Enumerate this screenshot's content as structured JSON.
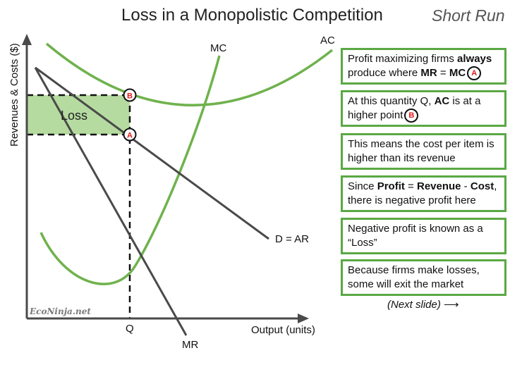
{
  "title": "Loss in a Monopolistic Competition",
  "subtitle": "Short Run",
  "diagram": {
    "ylabel": "Revenues & Costs ($)",
    "xlabel": "Output (units)",
    "curves": {
      "ac": "AC",
      "mc": "MC",
      "demand": "D = AR",
      "mr": "MR"
    },
    "area_label": "Loss",
    "quantity_label": "Q",
    "point_a": "A",
    "point_b": "B",
    "watermark": "EcoNinja.net",
    "colors": {
      "curve": "#6fb24d",
      "line": "#4a4a4a",
      "loss_fill": "#a9d58f",
      "badge_text": "#e3161c"
    }
  },
  "notes": [
    {
      "pre": "Profit maximizing firms ",
      "b1": "always",
      "mid": " produce where ",
      "b2": "MR",
      "mid2": " = ",
      "b3": "MC",
      "badge": "A"
    },
    {
      "pre": "At this quantity Q, ",
      "b1": "AC",
      "mid": " is at a higher point",
      "badge": "B"
    },
    {
      "text": "This means the cost per item is higher than its revenue"
    },
    {
      "pre": "Since ",
      "b1": "Profit",
      "mid": " = ",
      "b2": "Revenue",
      "mid2": " - ",
      "b3": "Cost",
      "post": ", there is negative profit here"
    },
    {
      "text": "Negative profit is known as a “Loss”"
    },
    {
      "text": "Because firms make losses, some will exit the market"
    }
  ],
  "next_slide": "(Next slide)",
  "next_arrow": "⟶"
}
